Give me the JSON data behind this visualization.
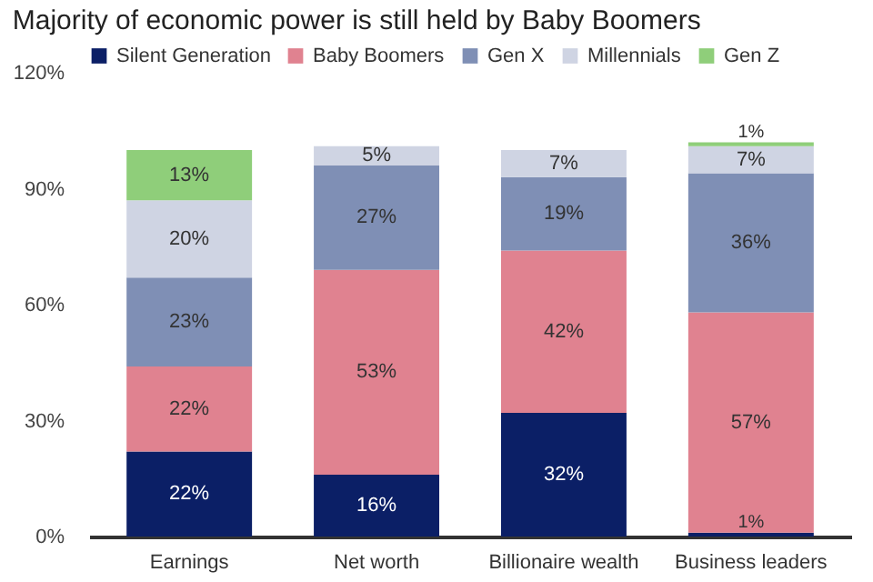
{
  "chart_data": {
    "type": "bar",
    "title": "Majority of economic power is still held by Baby Boomers",
    "stacked": true,
    "categories": [
      "Earnings",
      "Net worth",
      "Billionaire wealth",
      "Business leaders"
    ],
    "series": [
      {
        "name": "Silent Generation",
        "color": "#0b1f66",
        "values": [
          22,
          16,
          32,
          1
        ],
        "value_labels": [
          "22%",
          "16%",
          "32%",
          "1%"
        ]
      },
      {
        "name": "Baby Boomers",
        "color": "#e08290",
        "values": [
          22,
          53,
          42,
          57
        ],
        "value_labels": [
          "22%",
          "53%",
          "42%",
          "57%"
        ]
      },
      {
        "name": "Gen X",
        "color": "#7f8fb5",
        "values": [
          23,
          27,
          19,
          36
        ],
        "value_labels": [
          "23%",
          "27%",
          "19%",
          "36%"
        ]
      },
      {
        "name": "Millennials",
        "color": "#cfd4e3",
        "values": [
          20,
          5,
          7,
          7
        ],
        "value_labels": [
          "20%",
          "5%",
          "7%",
          "7%"
        ]
      },
      {
        "name": "Gen Z",
        "color": "#8fce7a",
        "values": [
          13,
          null,
          null,
          1
        ],
        "value_labels": [
          "13%",
          null,
          null,
          "1%"
        ]
      }
    ],
    "ylim": [
      0,
      120
    ],
    "yticks": [
      {
        "value": 0,
        "label": "0%"
      },
      {
        "value": 30,
        "label": "30%"
      },
      {
        "value": 60,
        "label": "60%"
      },
      {
        "value": 90,
        "label": "90%"
      },
      {
        "value": 120,
        "label": "120%"
      }
    ],
    "grid": false,
    "legend": "top"
  }
}
